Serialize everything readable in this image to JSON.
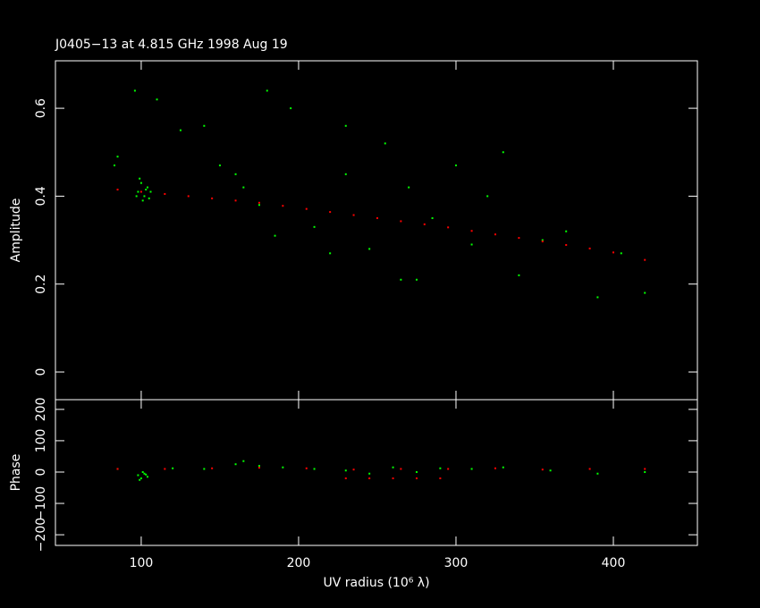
{
  "chart_data": [
    {
      "type": "scatter",
      "title": "J0405−13 at 4.815 GHz 1998 Aug 19",
      "ylabel": "Amplitude",
      "xlim": [
        45.5,
        453.4
      ],
      "xticks": [
        100,
        200,
        300,
        400
      ],
      "ylim": [
        -0.063,
        0.708
      ],
      "yticks": [
        0,
        0.2,
        0.4,
        0.6
      ],
      "series": [
        {
          "color": "#00ff00",
          "x": [
            98,
            100,
            102,
            104,
            101,
            99,
            106,
            97,
            103,
            105,
            83,
            85,
            96,
            110,
            125,
            140,
            150,
            160,
            165,
            175,
            185,
            195,
            210,
            220,
            230,
            245,
            255,
            265,
            275,
            285,
            300,
            310,
            320,
            330,
            340,
            355,
            370,
            390,
            405,
            420,
            180,
            230,
            270
          ],
          "values": [
            0.41,
            0.43,
            0.4,
            0.42,
            0.39,
            0.44,
            0.41,
            0.4,
            0.415,
            0.395,
            0.47,
            0.49,
            0.64,
            0.62,
            0.55,
            0.56,
            0.47,
            0.45,
            0.42,
            0.38,
            0.31,
            0.6,
            0.33,
            0.27,
            0.45,
            0.28,
            0.52,
            0.21,
            0.21,
            0.35,
            0.47,
            0.29,
            0.4,
            0.5,
            0.22,
            0.3,
            0.32,
            0.17,
            0.27,
            0.18,
            0.64,
            0.56,
            0.42
          ]
        },
        {
          "color": "#ff0000",
          "x": [
            85,
            100,
            115,
            130,
            145,
            160,
            175,
            190,
            205,
            220,
            235,
            250,
            265,
            280,
            295,
            310,
            325,
            340,
            355,
            370,
            385,
            400,
            420
          ],
          "values": [
            0.415,
            0.41,
            0.405,
            0.4,
            0.395,
            0.39,
            0.385,
            0.378,
            0.371,
            0.364,
            0.357,
            0.35,
            0.343,
            0.336,
            0.329,
            0.321,
            0.313,
            0.305,
            0.297,
            0.289,
            0.281,
            0.272,
            0.255
          ]
        }
      ]
    },
    {
      "type": "scatter",
      "ylabel": "Phase",
      "xlabel": "UV radius  (10⁶ λ)",
      "xlim": [
        45.5,
        453.4
      ],
      "xticks": [
        100,
        200,
        300,
        400
      ],
      "ylim": [
        -234,
        231
      ],
      "yticks": [
        {
          "value": -200,
          "label": "−200"
        },
        {
          "value": -100,
          "label": "−100"
        },
        0,
        100,
        200
      ],
      "series": [
        {
          "color": "#00ff00",
          "x": [
            98,
            100,
            102,
            104,
            99,
            101,
            103,
            85,
            120,
            140,
            160,
            165,
            175,
            190,
            210,
            230,
            245,
            260,
            275,
            290,
            310,
            330,
            360,
            390,
            420
          ],
          "values": [
            -10,
            -20,
            -5,
            -15,
            -25,
            0,
            -8,
            10,
            12,
            10,
            25,
            35,
            20,
            15,
            10,
            5,
            -5,
            15,
            0,
            12,
            10,
            15,
            5,
            -5,
            0
          ]
        },
        {
          "color": "#ff0000",
          "x": [
            85,
            115,
            145,
            175,
            205,
            235,
            265,
            295,
            325,
            355,
            385,
            420,
            230,
            245,
            260,
            275,
            290
          ],
          "values": [
            10,
            10,
            12,
            14,
            12,
            8,
            10,
            10,
            12,
            8,
            10,
            10,
            -20,
            -20,
            -20,
            -20,
            -20
          ]
        }
      ]
    }
  ]
}
